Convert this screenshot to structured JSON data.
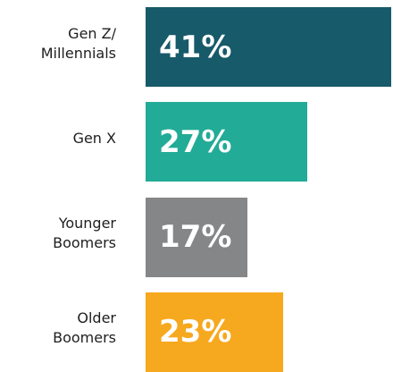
{
  "chart_data": {
    "type": "bar",
    "orientation": "horizontal",
    "categories": [
      "Gen Z/\nMillennials",
      "Gen X",
      "Younger\nBoomers",
      "Older\nBoomers"
    ],
    "values": [
      41,
      27,
      17,
      23
    ],
    "value_labels": [
      "41%",
      "27%",
      "17%",
      "23%"
    ],
    "colors": [
      "#175a6a",
      "#22ab97",
      "#858688",
      "#f6a81e"
    ]
  }
}
